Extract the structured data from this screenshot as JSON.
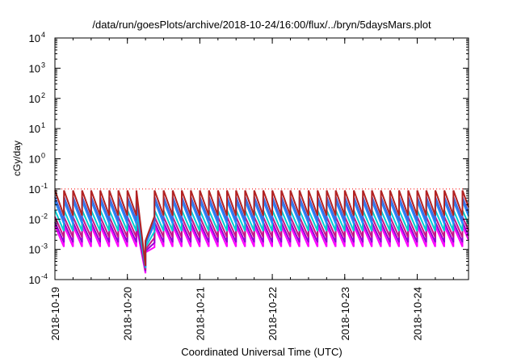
{
  "chart_data": {
    "type": "line",
    "title": "/data/run/goesPlots/archive/2018-10-24/16:00/flux/../bryn/5daysMars.plot",
    "xlabel": "Coordinated Universal Time (UTC)",
    "ylabel": "cGy/day",
    "yscale": "log",
    "ylim": [
      0.0001,
      10000
    ],
    "xlim": [
      "2018-10-19",
      "2018-10-24T17:00"
    ],
    "y_ticks": [
      {
        "m": "10",
        "e": "-4"
      },
      {
        "m": "10",
        "e": "-3"
      },
      {
        "m": "10",
        "e": "-2"
      },
      {
        "m": "10",
        "e": "-1"
      },
      {
        "m": "10",
        "e": "0"
      },
      {
        "m": "10",
        "e": "1"
      },
      {
        "m": "10",
        "e": "2"
      },
      {
        "m": "10",
        "e": "3"
      },
      {
        "m": "10",
        "e": "4"
      }
    ],
    "x_ticks": [
      "2018-10-19",
      "2018-10-20",
      "2018-10-21",
      "2018-10-22",
      "2018-10-23",
      "2018-10-24"
    ],
    "reference_line": {
      "y": 0.1,
      "color": "#ff0000",
      "style": "dotted"
    },
    "series_colors": [
      "#9400d3",
      "#ff00ff",
      "#b22222",
      "#c71585",
      "#00ced1",
      "#1e90ff",
      "#4169e1"
    ],
    "series": [
      {
        "color": "#ff00ff",
        "sawtooth_peak": 0.006,
        "sawtooth_trough": 0.0012
      },
      {
        "color": "#9400d3",
        "sawtooth_peak": 0.008,
        "sawtooth_trough": 0.0017
      },
      {
        "color": "#c71585",
        "sawtooth_peak": 0.012,
        "sawtooth_trough": 0.0025
      },
      {
        "color": "#00ced1",
        "sawtooth_peak": 0.02,
        "sawtooth_trough": 0.004
      },
      {
        "color": "#1e90ff",
        "sawtooth_peak": 0.04,
        "sawtooth_trough": 0.007
      },
      {
        "color": "#4169e1",
        "sawtooth_peak": 0.055,
        "sawtooth_trough": 0.009
      },
      {
        "color": "#b22222",
        "sawtooth_peak": 0.09,
        "sawtooth_trough": 0.013
      }
    ],
    "dip": {
      "start": "2018-10-20T03:00",
      "minimum": "2018-10-20T07:00",
      "end": "2018-10-20T09:00",
      "min_value": 0.0003
    },
    "sawtooth_period_hours": 3,
    "grid": false,
    "legend": "none"
  }
}
